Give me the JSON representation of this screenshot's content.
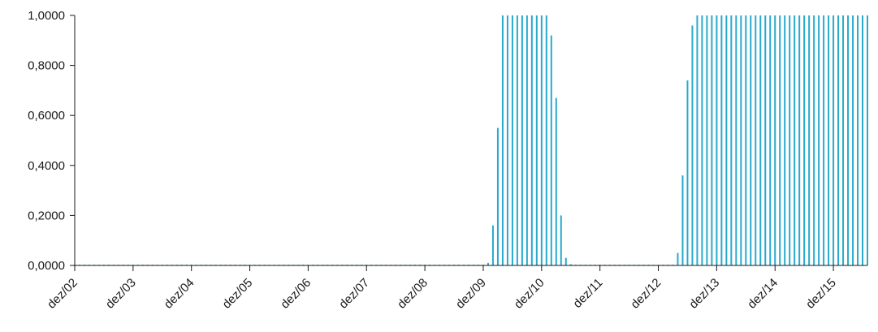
{
  "chart_data": {
    "type": "bar",
    "title": "",
    "xlabel": "",
    "ylabel": "",
    "ylim": [
      0,
      1
    ],
    "y_ticks": [
      "0,0000",
      "0,2000",
      "0,4000",
      "0,6000",
      "0,8000",
      "1,0000"
    ],
    "x_ticks": [
      "dez/02",
      "dez/03",
      "dez/04",
      "dez/05",
      "dez/06",
      "dez/07",
      "dez/08",
      "dez/09",
      "dez/10",
      "dez/11",
      "dez/12",
      "dez/13",
      "dez/14",
      "dez/15"
    ],
    "frequency": "monthly",
    "start": "2002-12",
    "end": "2015-12",
    "grid": false,
    "legend": "none",
    "bar_color": "#29a9cc",
    "series": [
      {
        "values": [
          0.003,
          0.003,
          0.003,
          0.003,
          0.003,
          0.003,
          0.003,
          0.003,
          0.003,
          0.003,
          0.003,
          0.003,
          0.003,
          0.003,
          0.003,
          0.003,
          0.003,
          0.003,
          0.003,
          0.003,
          0.003,
          0.003,
          0.003,
          0.003,
          0.003,
          0.003,
          0.003,
          0.003,
          0.003,
          0.003,
          0.003,
          0.003,
          0.003,
          0.003,
          0.003,
          0.003,
          0.003,
          0.003,
          0.003,
          0.003,
          0.003,
          0.003,
          0.003,
          0.003,
          0.003,
          0.003,
          0.003,
          0.003,
          0.003,
          0.003,
          0.003,
          0.003,
          0.003,
          0.003,
          0.003,
          0.003,
          0.003,
          0.003,
          0.003,
          0.003,
          0.003,
          0.003,
          0.003,
          0.003,
          0.003,
          0.003,
          0.003,
          0.003,
          0.003,
          0.003,
          0.003,
          0.003,
          0.003,
          0.003,
          0.003,
          0.003,
          0.003,
          0.003,
          0.003,
          0.003,
          0.003,
          0.003,
          0.003,
          0.003,
          0.003,
          0.01,
          0.16,
          0.55,
          1.0,
          1.0,
          1.0,
          1.0,
          1.0,
          1.0,
          1.0,
          1.0,
          1.0,
          1.0,
          0.92,
          0.67,
          0.2,
          0.03,
          0.005,
          0.003,
          0.003,
          0.003,
          0.003,
          0.003,
          0.003,
          0.003,
          0.003,
          0.003,
          0.003,
          0.003,
          0.003,
          0.003,
          0.003,
          0.003,
          0.003,
          0.003,
          0.003,
          0.003,
          0.003,
          0.003,
          0.05,
          0.36,
          0.74,
          0.96,
          1.0,
          1.0,
          1.0,
          1.0,
          1.0,
          1.0,
          1.0,
          1.0,
          1.0,
          1.0,
          1.0,
          1.0,
          1.0,
          1.0,
          1.0,
          1.0,
          1.0,
          1.0,
          1.0,
          1.0,
          1.0,
          1.0,
          1.0,
          1.0,
          1.0,
          1.0,
          1.0,
          1.0,
          1.0,
          1.0,
          1.0,
          1.0,
          1.0,
          1.0,
          1.0,
          1.0
        ]
      }
    ]
  }
}
